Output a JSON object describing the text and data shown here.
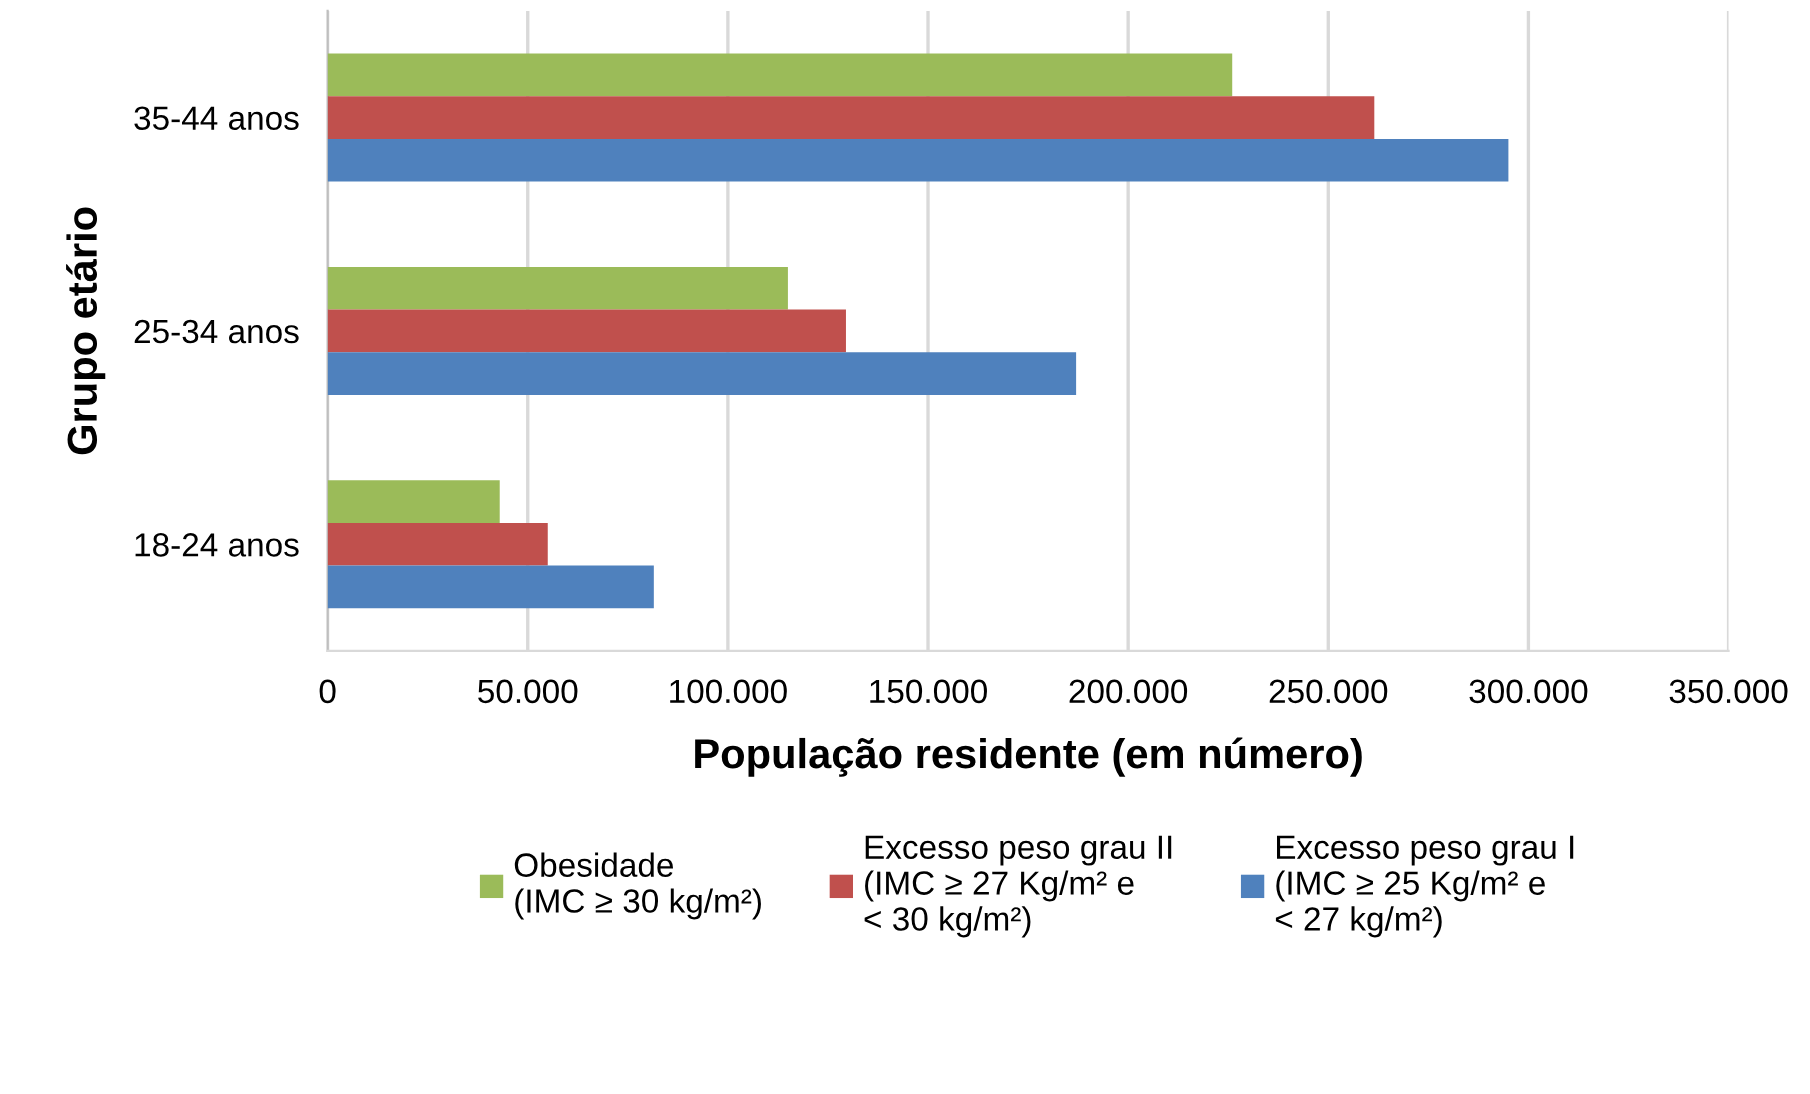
{
  "chart_data": {
    "type": "bar",
    "orientation": "horizontal",
    "xlabel": "População residente (em número)",
    "ylabel": "Grupo etário",
    "categories": [
      "35-44 anos",
      "25-34 anos",
      "18-24 anos"
    ],
    "series": [
      {
        "name": "Obesidade\n(IMC ≥ 30 kg/m²)",
        "color": "#9bbb59",
        "values": [
          226000,
          115000,
          43000
        ]
      },
      {
        "name": "Excesso peso grau II\n(IMC ≥ 27 Kg/m² e\n< 30 kg/m²)",
        "color": "#c0504d",
        "values": [
          261500,
          129500,
          55000
        ]
      },
      {
        "name": "Excesso peso grau I\n(IMC ≥ 25 Kg/m² e\n< 27 kg/m²)",
        "color": "#4f81bd",
        "values": [
          295000,
          187000,
          81500
        ]
      }
    ],
    "xlim": [
      0,
      350000
    ],
    "xticks": [
      0,
      {
        "value": 50000,
        "label": "50.000"
      },
      {
        "value": 100000,
        "label": "100.000"
      },
      {
        "value": 150000,
        "label": "150.000"
      },
      {
        "value": 200000,
        "label": "200.000"
      },
      {
        "value": 250000,
        "label": "250.000"
      },
      {
        "value": 300000,
        "label": "300.000"
      },
      {
        "value": 350000,
        "label": "350.000"
      }
    ],
    "grid": "x",
    "legend": "bottom"
  }
}
